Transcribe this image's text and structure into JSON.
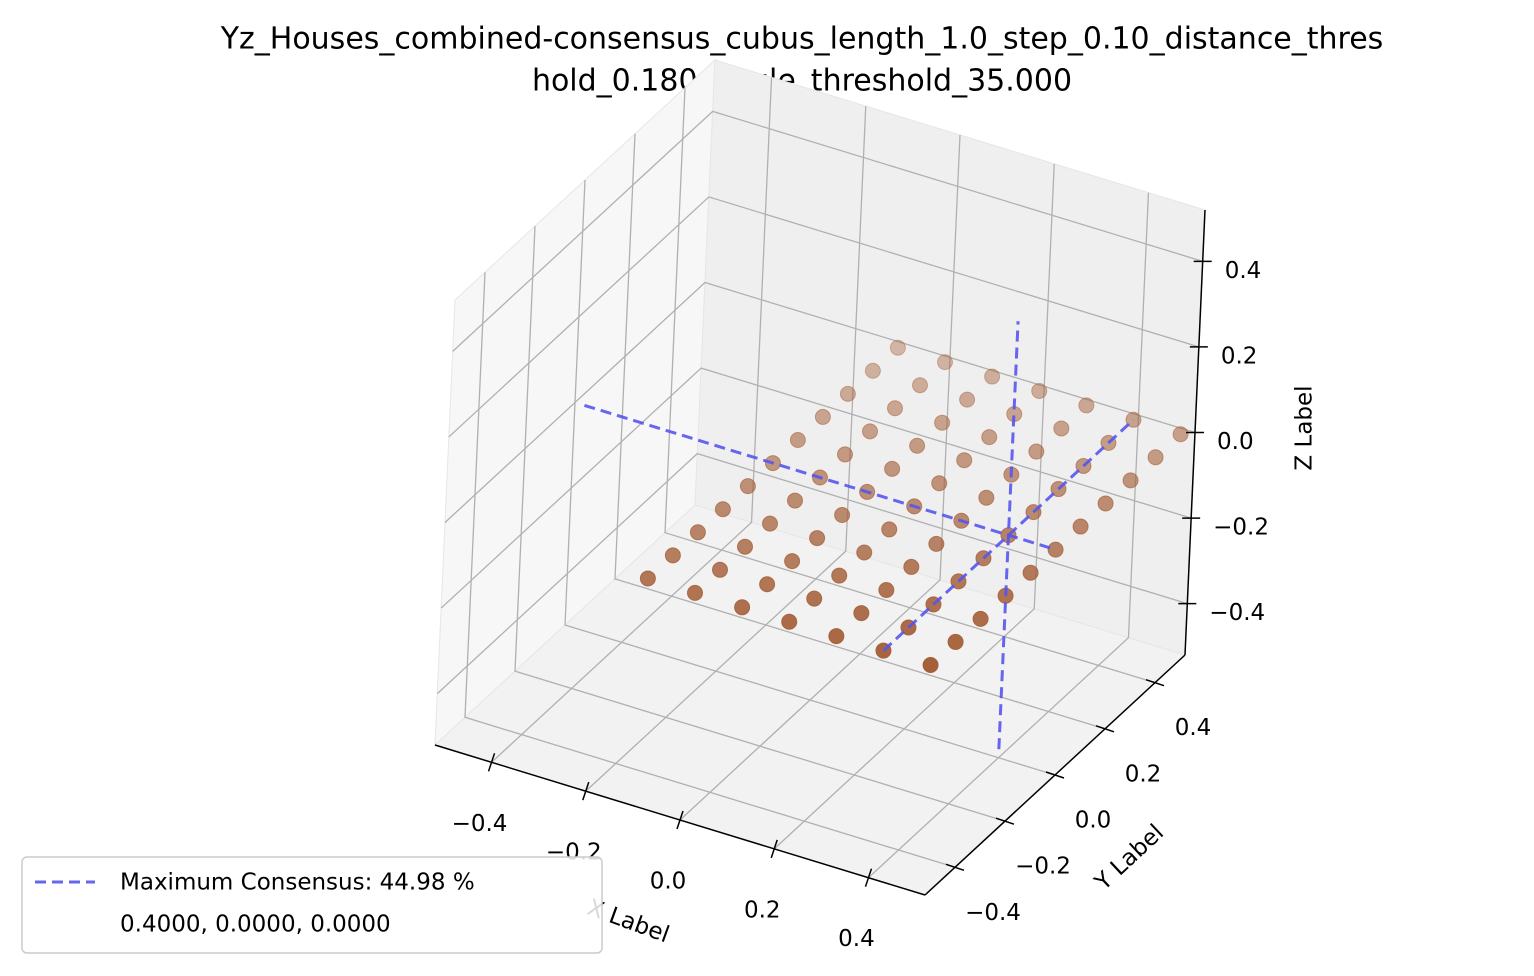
{
  "chart_data": {
    "type": "scatter3d",
    "title": [
      "Yz_Houses_combined-consensus_cubus_length_1.0_step_0.10_distance_thres",
      "hold_0.180_angle_threshold_35.000"
    ],
    "xlabel": "X Label",
    "ylabel": "Y Label",
    "zlabel": "Z Label",
    "xlim": [
      -0.52,
      0.52
    ],
    "ylim": [
      -0.52,
      0.52
    ],
    "zlim": [
      -0.52,
      0.52
    ],
    "xticks": [
      {
        "value": -0.4,
        "label": "−0.4"
      },
      {
        "value": -0.2,
        "label": "−0.2"
      },
      {
        "value": 0,
        "label": "0.0"
      },
      {
        "value": 0.2,
        "label": "0.2"
      },
      {
        "value": 0.4,
        "label": "0.4"
      }
    ],
    "yticks": [
      {
        "value": -0.4,
        "label": "−0.4"
      },
      {
        "value": -0.2,
        "label": "−0.2"
      },
      {
        "value": 0,
        "label": "0.0"
      },
      {
        "value": 0.2,
        "label": "0.2"
      },
      {
        "value": 0.4,
        "label": "0.4"
      }
    ],
    "zticks": [
      {
        "value": -0.4,
        "label": "−0.4"
      },
      {
        "value": -0.2,
        "label": "−0.2"
      },
      {
        "value": 0,
        "label": "0.0"
      },
      {
        "value": 0.2,
        "label": "0.2"
      },
      {
        "value": 0.4,
        "label": "0.4"
      }
    ],
    "grid": true,
    "legend_loc": "lower left",
    "points": {
      "color": "#a5603a",
      "x": [
        -0.1,
        -0.1,
        -0.1,
        -0.1,
        -0.1,
        -0.1,
        -0.1,
        -0.1,
        -0.1,
        -0.1,
        -0.1,
        0,
        0,
        0,
        0,
        0,
        0,
        0,
        0,
        0,
        0,
        0,
        0.1,
        0.1,
        0.1,
        0.1,
        0.1,
        0.1,
        0.1,
        0.1,
        0.1,
        0.1,
        0.1,
        0.2,
        0.2,
        0.2,
        0.2,
        0.2,
        0.2,
        0.2,
        0.2,
        0.2,
        0.2,
        0.2,
        0.3,
        0.3,
        0.3,
        0.3,
        0.3,
        0.3,
        0.3,
        0.3,
        0.3,
        0.3,
        0.3,
        0.4,
        0.4,
        0.4,
        0.4,
        0.4,
        0.4,
        0.4,
        0.4,
        0.4,
        0.4,
        0.4,
        0.5,
        0.5,
        0.5,
        0.5,
        0.5,
        0.5,
        0.5,
        0.5,
        0.5,
        0.5,
        0.5
      ],
      "y": [
        -0.5,
        -0.4,
        -0.3,
        -0.2,
        -0.1,
        0,
        0.1,
        0.2,
        0.3,
        0.4,
        0.5,
        -0.5,
        -0.4,
        -0.3,
        -0.2,
        -0.1,
        0,
        0.1,
        0.2,
        0.3,
        0.4,
        0.5,
        -0.5,
        -0.4,
        -0.3,
        -0.2,
        -0.1,
        0,
        0.1,
        0.2,
        0.3,
        0.4,
        0.5,
        -0.5,
        -0.4,
        -0.3,
        -0.2,
        -0.1,
        0,
        0.1,
        0.2,
        0.3,
        0.4,
        0.5,
        -0.5,
        -0.4,
        -0.3,
        -0.2,
        -0.1,
        0,
        0.1,
        0.2,
        0.3,
        0.4,
        0.5,
        -0.5,
        -0.4,
        -0.3,
        -0.2,
        -0.1,
        0,
        0.1,
        0.2,
        0.3,
        0.4,
        0.5,
        -0.5,
        -0.4,
        -0.3,
        -0.2,
        -0.1,
        0,
        0.1,
        0.2,
        0.3,
        0.4,
        0.5
      ],
      "z": [
        0,
        0,
        0,
        0,
        0,
        0,
        0,
        0,
        0,
        0,
        0,
        0,
        0,
        0,
        0,
        0,
        0,
        0,
        0,
        0,
        0,
        0,
        0,
        0,
        0,
        0,
        0,
        0,
        0,
        0,
        0,
        0,
        0,
        0,
        0,
        0,
        0,
        0,
        0,
        0,
        0,
        0,
        0,
        0,
        0,
        0,
        0,
        0,
        0,
        0,
        0,
        0,
        0,
        0,
        0,
        0,
        0,
        0,
        0,
        0,
        0,
        0,
        0,
        0,
        0,
        0,
        0,
        0,
        0,
        0,
        0,
        0,
        0,
        0,
        0,
        0,
        0
      ]
    },
    "max_consensus": {
      "name": "Maximum Consensus: 44.98 %",
      "coords_label": "0.4000, 0.0000, 0.0000",
      "color": "#5555ee",
      "segments": [
        {
          "x": [
            -0.5,
            0.5
          ],
          "y": [
            0,
            0
          ],
          "z": [
            0,
            0
          ]
        },
        {
          "x": [
            0.4,
            0.4
          ],
          "y": [
            -0.5,
            0.5
          ],
          "z": [
            0,
            0
          ]
        },
        {
          "x": [
            0.4,
            0.4
          ],
          "y": [
            0,
            0
          ],
          "z": [
            -0.5,
            0.5
          ]
        }
      ]
    }
  }
}
